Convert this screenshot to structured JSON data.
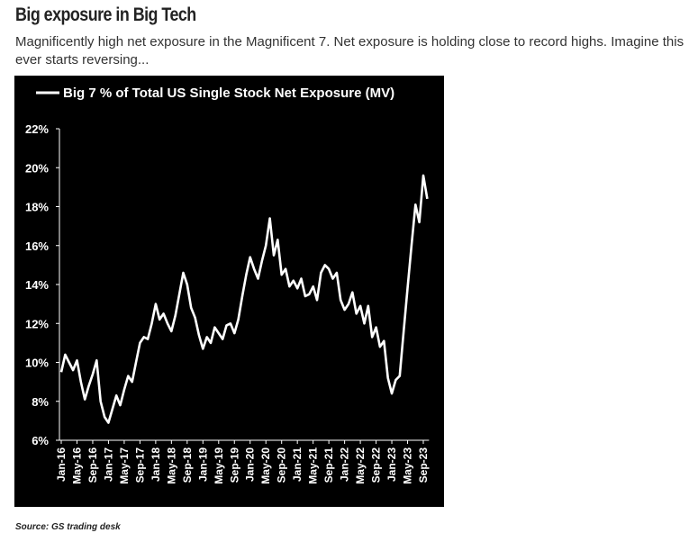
{
  "title": "Big exposure in Big Tech",
  "subtitle": "Magnificently high net exposure in the Magnificent 7. Net exposure is holding close to record highs. Imagine this ever starts reversing...",
  "source": "Source: GS trading desk",
  "chart_data": {
    "type": "line",
    "categories": [
      "Jan-16",
      null,
      null,
      null,
      "May-16",
      null,
      null,
      null,
      "Sep-16",
      null,
      null,
      null,
      "Jan-17",
      null,
      null,
      null,
      "May-17",
      null,
      null,
      null,
      "Sep-17",
      null,
      null,
      null,
      "Jan-18",
      null,
      null,
      null,
      "May-18",
      null,
      null,
      null,
      "Sep-18",
      null,
      null,
      null,
      "Jan-19",
      null,
      null,
      null,
      "May-19",
      null,
      null,
      null,
      "Sep-19",
      null,
      null,
      null,
      "Jan-20",
      null,
      null,
      null,
      "May-20",
      null,
      null,
      null,
      "Sep-20",
      null,
      null,
      null,
      "Jan-21",
      null,
      null,
      null,
      "May-21",
      null,
      null,
      null,
      "Sep-21",
      null,
      null,
      null,
      "Jan-22",
      null,
      null,
      null,
      "May-22",
      null,
      null,
      null,
      "Sep-22",
      null,
      null,
      null,
      "Jan-23",
      null,
      null,
      null,
      "May-23",
      null,
      null,
      null,
      "Sep-23",
      null
    ],
    "series": [
      {
        "name": "Big 7 % of Total US Single Stock Net Exposure (MV)",
        "color": "#ffffff",
        "values": [
          9.5,
          10.4,
          10.0,
          9.6,
          10.1,
          9.0,
          8.1,
          8.8,
          9.4,
          10.1,
          8.0,
          7.2,
          6.9,
          7.6,
          8.3,
          7.8,
          8.6,
          9.3,
          9.0,
          10.0,
          11.0,
          11.3,
          11.2,
          12.0,
          13.0,
          12.2,
          12.5,
          12.0,
          11.6,
          12.4,
          13.5,
          14.6,
          14.0,
          12.8,
          12.3,
          11.4,
          10.7,
          11.3,
          11.0,
          11.8,
          11.5,
          11.2,
          11.9,
          12.0,
          11.5,
          12.2,
          13.4,
          14.5,
          15.4,
          14.8,
          14.3,
          15.2,
          16.0,
          17.4,
          15.5,
          16.3,
          14.5,
          14.8,
          13.9,
          14.2,
          13.8,
          14.3,
          13.4,
          13.5,
          13.9,
          13.2,
          14.6,
          15.0,
          14.8,
          14.3,
          14.6,
          13.2,
          12.7,
          13.0,
          13.6,
          12.5,
          12.9,
          12.0,
          12.9,
          11.3,
          11.8,
          10.8,
          11.1,
          9.2,
          8.4,
          9.1,
          9.3,
          11.6,
          13.8,
          16.0,
          18.1,
          17.2,
          19.6,
          18.4
        ]
      }
    ],
    "ylim": [
      6,
      22
    ],
    "yticks": [
      {
        "value": 6,
        "label": "6%"
      },
      {
        "value": 8,
        "label": "8%"
      },
      {
        "value": 10,
        "label": "10%"
      },
      {
        "value": 12,
        "label": "12%"
      },
      {
        "value": 14,
        "label": "14%"
      },
      {
        "value": 16,
        "label": "16%"
      },
      {
        "value": 18,
        "label": "18%"
      },
      {
        "value": 20,
        "label": "20%"
      },
      {
        "value": 22,
        "label": "22%"
      }
    ],
    "background": "#000000",
    "legend": "top-left"
  }
}
